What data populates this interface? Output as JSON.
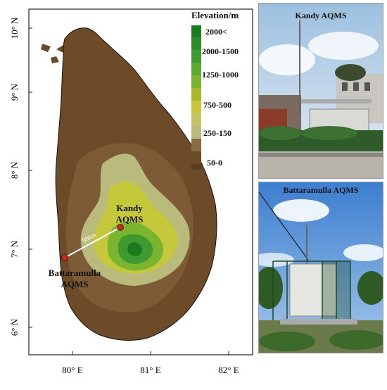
{
  "map": {
    "lat_ticks": [
      "10° N",
      "9° N",
      "8° N",
      "7° N",
      "6° N"
    ],
    "lon_ticks": [
      "80° E",
      "81° E",
      "82° E"
    ],
    "distance_label": "90km",
    "stations": [
      {
        "name_line1": "Kandy",
        "name_line2": "AQMS",
        "lat": 7.29,
        "lon": 80.63
      },
      {
        "name_line1": "Battaramulla",
        "name_line2": "AQMS",
        "lat": 6.9,
        "lon": 79.92
      }
    ]
  },
  "legend": {
    "title": "Elevation/m",
    "classes": [
      {
        "label": "2000<",
        "color": "#1a7a1e"
      },
      {
        "label": "2000-1500",
        "color": "#3f9a32"
      },
      {
        "label": "1250-1000",
        "color": "#79b52e"
      },
      {
        "label": "750-500",
        "color": "#c5c83a"
      },
      {
        "label": "250-150",
        "color": "#b9ba7c"
      },
      {
        "label": "50-0",
        "color": "#6b4a26"
      }
    ]
  },
  "photos": {
    "kandy_title": "Kandy AQMS",
    "battaramulla_title": "Battaramulla AQMS"
  }
}
